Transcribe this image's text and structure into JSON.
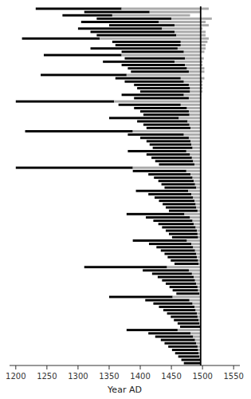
{
  "chart_data": {
    "type": "range_bar",
    "orientation": "horizontal",
    "xlabel": "Year AD",
    "xlim": [
      1190,
      1560
    ],
    "xticks": [
      1200,
      1250,
      1300,
      1350,
      1400,
      1450,
      1500,
      1550
    ],
    "grid": false,
    "tick_labels": "x",
    "vline": {
      "x": 1497,
      "color": "#000000"
    },
    "series": [
      {
        "color": "#000000",
        "values": [
          [
            1232,
            1370
          ],
          [
            1310,
            1415
          ],
          [
            1275,
            1355
          ],
          [
            1330,
            1450
          ],
          [
            1305,
            1430
          ],
          [
            1350,
            1455
          ],
          [
            1300,
            1435
          ],
          [
            1320,
            1455
          ],
          [
            1330,
            1458
          ],
          [
            1210,
            1335
          ],
          [
            1355,
            1465
          ],
          [
            1360,
            1465
          ],
          [
            1320,
            1460
          ],
          [
            1370,
            1470
          ],
          [
            1245,
            1370
          ],
          [
            1375,
            1472
          ],
          [
            1340,
            1455
          ],
          [
            1370,
            1472
          ],
          [
            1380,
            1475
          ],
          [
            1385,
            1478
          ],
          [
            1240,
            1378
          ],
          [
            1360,
            1465
          ],
          [
            1375,
            1470
          ],
          [
            1390,
            1478
          ],
          [
            1395,
            1480
          ],
          [
            1400,
            1480
          ],
          [
            1370,
            1470
          ],
          [
            1390,
            1478
          ],
          [
            1200,
            1358
          ],
          [
            1365,
            1465
          ],
          [
            1390,
            1475
          ],
          [
            1400,
            1478
          ],
          [
            1405,
            1479
          ],
          [
            1350,
            1462
          ],
          [
            1395,
            1476
          ],
          [
            1405,
            1479
          ],
          [
            1410,
            1481
          ],
          [
            1215,
            1388
          ],
          [
            1380,
            1470
          ],
          [
            1400,
            1478
          ],
          [
            1410,
            1481
          ],
          [
            1415,
            1482
          ],
          [
            1420,
            1484
          ],
          [
            1380,
            1474
          ],
          [
            1410,
            1480
          ],
          [
            1418,
            1483
          ],
          [
            1424,
            1485
          ],
          [
            1430,
            1487
          ],
          [
            1200,
            1388
          ],
          [
            1388,
            1474
          ],
          [
            1413,
            1481
          ],
          [
            1422,
            1484
          ],
          [
            1429,
            1486
          ],
          [
            1434,
            1488
          ],
          [
            1439,
            1490
          ],
          [
            1393,
            1477
          ],
          [
            1413,
            1482
          ],
          [
            1423,
            1485
          ],
          [
            1430,
            1487
          ],
          [
            1436,
            1489
          ],
          [
            1441,
            1490
          ],
          [
            1446,
            1492
          ],
          [
            1378,
            1471
          ],
          [
            1409,
            1480
          ],
          [
            1421,
            1484
          ],
          [
            1429,
            1486
          ],
          [
            1435,
            1489
          ],
          [
            1441,
            1491
          ],
          [
            1446,
            1492
          ],
          [
            1451,
            1493
          ],
          [
            1388,
            1475
          ],
          [
            1414,
            1482
          ],
          [
            1426,
            1485
          ],
          [
            1433,
            1488
          ],
          [
            1439,
            1490
          ],
          [
            1444,
            1491
          ],
          [
            1449,
            1493
          ],
          [
            1455,
            1494
          ],
          [
            1310,
            1443
          ],
          [
            1404,
            1478
          ],
          [
            1419,
            1483
          ],
          [
            1428,
            1486
          ],
          [
            1435,
            1488
          ],
          [
            1441,
            1490
          ],
          [
            1447,
            1492
          ],
          [
            1452,
            1493
          ],
          [
            1458,
            1495
          ],
          [
            1350,
            1452
          ],
          [
            1408,
            1479
          ],
          [
            1421,
            1484
          ],
          [
            1430,
            1487
          ],
          [
            1437,
            1489
          ],
          [
            1443,
            1491
          ],
          [
            1449,
            1492
          ],
          [
            1454,
            1494
          ],
          [
            1460,
            1495
          ],
          [
            1464,
            1496
          ],
          [
            1378,
            1460
          ],
          [
            1413,
            1481
          ],
          [
            1424,
            1485
          ],
          [
            1433,
            1488
          ],
          [
            1439,
            1490
          ],
          [
            1445,
            1492
          ],
          [
            1451,
            1493
          ],
          [
            1456,
            1494
          ],
          [
            1461,
            1495
          ],
          [
            1466,
            1496
          ],
          [
            1470,
            1497
          ]
        ]
      },
      {
        "color": "#aaaaaa",
        "values": [
          [
            1370,
            1510
          ],
          [
            1415,
            1497
          ],
          [
            1355,
            1480
          ],
          [
            1450,
            1515
          ],
          [
            1430,
            1505
          ],
          [
            1455,
            1510
          ],
          [
            1435,
            1500
          ],
          [
            1455,
            1505
          ],
          [
            1458,
            1505
          ],
          [
            1335,
            1510
          ],
          [
            1465,
            1508
          ],
          [
            1465,
            1505
          ],
          [
            1460,
            1505
          ],
          [
            1470,
            1503
          ],
          [
            1370,
            1497
          ],
          [
            1472,
            1502
          ],
          [
            1455,
            1500
          ],
          [
            1472,
            1500
          ],
          [
            1475,
            1503
          ],
          [
            1478,
            1503
          ],
          [
            1378,
            1497
          ],
          [
            1465,
            1503
          ],
          [
            1470,
            1500
          ],
          [
            1478,
            1500
          ],
          [
            1480,
            1500
          ],
          [
            1480,
            1500
          ],
          [
            1470,
            1498
          ],
          [
            1478,
            1498
          ],
          [
            1358,
            1497
          ],
          [
            1465,
            1497
          ],
          [
            1475,
            1497
          ],
          [
            1478,
            1497
          ],
          [
            1479,
            1497
          ],
          [
            1462,
            1497
          ],
          [
            1476,
            1497
          ],
          [
            1479,
            1497
          ],
          [
            1481,
            1497
          ],
          [
            1388,
            1497
          ],
          [
            1470,
            1497
          ],
          [
            1478,
            1497
          ],
          [
            1481,
            1497
          ],
          [
            1482,
            1497
          ],
          [
            1484,
            1497
          ],
          [
            1474,
            1497
          ],
          [
            1480,
            1497
          ],
          [
            1483,
            1497
          ],
          [
            1485,
            1497
          ],
          [
            1487,
            1497
          ],
          [
            1388,
            1497
          ],
          [
            1474,
            1497
          ],
          [
            1481,
            1497
          ],
          [
            1484,
            1497
          ],
          [
            1486,
            1497
          ],
          [
            1488,
            1497
          ],
          [
            1490,
            1497
          ],
          [
            1477,
            1497
          ],
          [
            1482,
            1497
          ],
          [
            1485,
            1497
          ],
          [
            1487,
            1497
          ],
          [
            1489,
            1497
          ],
          [
            1490,
            1497
          ],
          [
            1492,
            1497
          ],
          [
            1471,
            1497
          ],
          [
            1480,
            1497
          ],
          [
            1484,
            1497
          ],
          [
            1486,
            1497
          ],
          [
            1489,
            1497
          ],
          [
            1491,
            1497
          ],
          [
            1492,
            1497
          ],
          [
            1493,
            1497
          ],
          [
            1475,
            1497
          ],
          [
            1482,
            1497
          ],
          [
            1485,
            1497
          ],
          [
            1488,
            1497
          ],
          [
            1490,
            1497
          ],
          [
            1491,
            1497
          ],
          [
            1493,
            1497
          ],
          [
            1494,
            1497
          ],
          [
            1443,
            1497
          ],
          [
            1478,
            1497
          ],
          [
            1483,
            1497
          ],
          [
            1486,
            1497
          ],
          [
            1488,
            1497
          ],
          [
            1490,
            1497
          ],
          [
            1492,
            1497
          ],
          [
            1493,
            1497
          ],
          [
            1495,
            1497
          ],
          [
            1452,
            1497
          ],
          [
            1479,
            1497
          ],
          [
            1484,
            1497
          ],
          [
            1487,
            1497
          ],
          [
            1489,
            1497
          ],
          [
            1491,
            1497
          ],
          [
            1492,
            1497
          ],
          [
            1494,
            1497
          ],
          [
            1495,
            1497
          ],
          [
            1496,
            1497
          ],
          [
            1460,
            1497
          ],
          [
            1481,
            1497
          ],
          [
            1485,
            1497
          ],
          [
            1488,
            1497
          ],
          [
            1490,
            1497
          ],
          [
            1492,
            1497
          ],
          [
            1493,
            1497
          ],
          [
            1494,
            1497
          ],
          [
            1495,
            1497
          ],
          [
            1496,
            1497
          ],
          [
            1497,
            1497
          ]
        ]
      }
    ]
  }
}
